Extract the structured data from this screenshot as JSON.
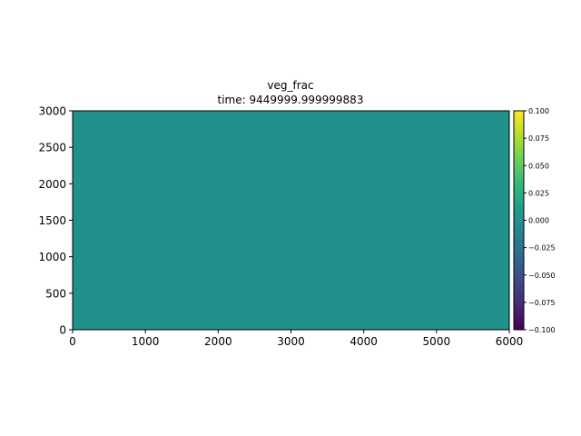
{
  "chart_data": {
    "type": "heatmap",
    "title": "veg_frac",
    "subtitle": "time: 9449999.999999883",
    "xlabel": "",
    "ylabel": "",
    "xlim": [
      0,
      6000
    ],
    "ylim": [
      0,
      3000
    ],
    "x_ticks": [
      0,
      1000,
      2000,
      3000,
      4000,
      5000,
      6000
    ],
    "y_ticks": [
      0,
      500,
      1000,
      1500,
      2000,
      2500,
      3000
    ],
    "field_value": 0.0,
    "field_color": "#21918c",
    "colorbar": {
      "colormap": "viridis",
      "min": -0.1,
      "max": 0.1,
      "ticks": [
        "−0.100",
        "−0.075",
        "−0.050",
        "−0.025",
        "0.000",
        "0.025",
        "0.050",
        "0.075",
        "0.100"
      ],
      "tick_values": [
        -0.1,
        -0.075,
        -0.05,
        -0.025,
        0.0,
        0.025,
        0.05,
        0.075,
        0.1
      ],
      "stops": [
        "#440154",
        "#482878",
        "#3e4989",
        "#31688e",
        "#26828e",
        "#1f9e89",
        "#35b779",
        "#6ece58",
        "#b5de2b",
        "#fde725"
      ]
    },
    "grid": false
  }
}
